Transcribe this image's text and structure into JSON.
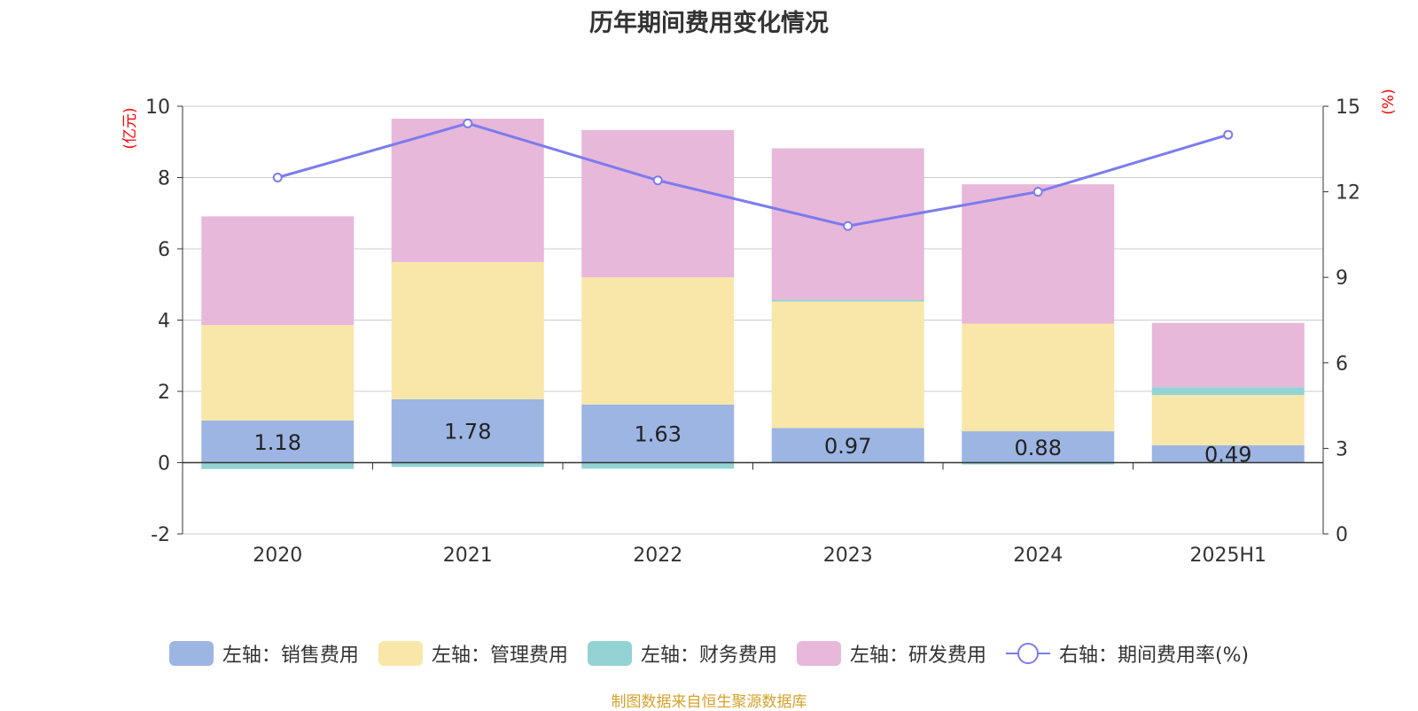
{
  "chart_data": {
    "type": "bar",
    "stacked": true,
    "title": "历年期间费用变化情况",
    "categories": [
      "2020",
      "2021",
      "2022",
      "2023",
      "2024",
      "2025H1"
    ],
    "left_axis": {
      "label": "(亿元)",
      "range": [
        -2,
        10
      ],
      "ticks": [
        -2,
        0,
        2,
        4,
        6,
        8,
        10
      ]
    },
    "right_axis": {
      "label": "(%)",
      "range": [
        0,
        15
      ],
      "ticks": [
        0,
        3,
        6,
        9,
        12,
        15
      ]
    },
    "series": [
      {
        "name": "左轴：销售费用",
        "axis": "left",
        "color": "#9db5e3",
        "values": [
          1.18,
          1.78,
          1.63,
          0.97,
          0.88,
          0.49
        ],
        "show_labels": true
      },
      {
        "name": "左轴：管理费用",
        "axis": "left",
        "color": "#f8e7a8",
        "values": [
          2.68,
          3.85,
          3.57,
          3.55,
          3.02,
          1.41
        ]
      },
      {
        "name": "左轴：财务费用",
        "axis": "left",
        "color": "#93d3d4",
        "values": [
          -0.18,
          -0.12,
          -0.17,
          0.05,
          -0.05,
          0.22
        ]
      },
      {
        "name": "左轴：研发费用",
        "axis": "left",
        "color": "#e7b8d9",
        "values": [
          3.05,
          4.02,
          4.13,
          4.25,
          3.91,
          1.8
        ]
      },
      {
        "name": "右轴：期间费用率(%)",
        "axis": "right",
        "type": "line",
        "color": "#7b7bef",
        "values": [
          12.5,
          14.4,
          12.4,
          10.8,
          12.0,
          14.0
        ]
      }
    ],
    "grid": true,
    "legend": "bottom"
  },
  "footer": "制图数据来自恒生聚源数据库"
}
